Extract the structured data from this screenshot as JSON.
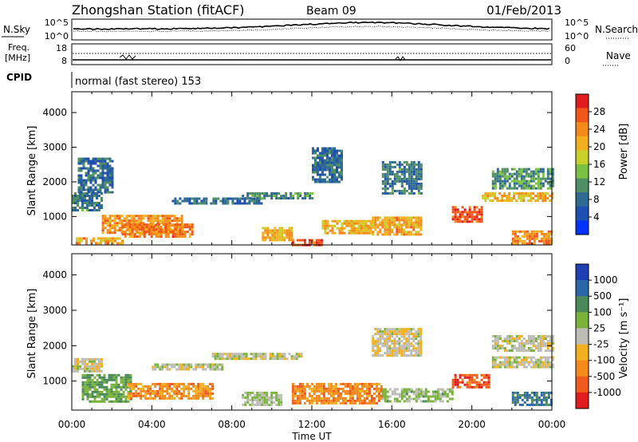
{
  "header": {
    "title": "Zhongshan Station (fitACF)",
    "beam": "Beam 09",
    "date": "01/Feb/2013"
  },
  "top_panels": {
    "nsky_label": "N.Sky",
    "nsearch_label": "N.Search",
    "freq_label_1": "Freq.",
    "freq_label_2": "[MHz]",
    "nave_label": "Nave",
    "cpid_label": "CPID",
    "nsky_ticks": [
      "10^5",
      "10^0"
    ],
    "nsearch_ticks": [
      "10^5",
      "10^0"
    ],
    "freq_ticks": [
      "18",
      "8"
    ],
    "nave_ticks": [
      "60",
      "0"
    ],
    "cpid_text": "normal (fast stereo) 153"
  },
  "colorbars": {
    "power": {
      "label": "Power [dB]",
      "ticks": [
        "4",
        "8",
        "12",
        "16",
        "20",
        "24",
        "28"
      ],
      "colors": [
        "#0033ff",
        "#1f4fb0",
        "#2f6a95",
        "#4e8f66",
        "#7ac142",
        "#c9d02a",
        "#f2b01e",
        "#f58a1a",
        "#f0561a",
        "#e01c1c"
      ]
    },
    "velocity": {
      "label": "Velocity [m s⁻¹]",
      "ticks": [
        "1000",
        "500",
        "100",
        "25",
        "-25",
        "-100",
        "-500",
        "-1000"
      ],
      "colors": [
        "#1f3fb5",
        "#2a66a8",
        "#4a8a5a",
        "#7ab33c",
        "#bdbdb5",
        "#f2b01e",
        "#f58a1a",
        "#f05a1a",
        "#e01c1c"
      ]
    }
  },
  "axes": {
    "y_label": "Slant Range [km]",
    "x_label": "Time UT",
    "x_ticks": [
      "00:00",
      "04:00",
      "08:00",
      "12:00",
      "16:00",
      "20:00",
      "00:00"
    ],
    "y_ticks": [
      "1000",
      "2000",
      "3000",
      "4000"
    ]
  },
  "chart_data": [
    {
      "type": "heatmap",
      "title": "Power [dB]",
      "xlabel": "Time UT",
      "ylabel": "Slant Range [km]",
      "xlim": [
        0,
        24
      ],
      "ylim": [
        180,
        4600
      ],
      "zlim": [
        0,
        32
      ],
      "regions": [
        {
          "t0": 0.0,
          "t1": 1.5,
          "r0": 1150,
          "r1": 1700,
          "value": 9
        },
        {
          "t0": 0.3,
          "t1": 2.0,
          "r0": 1700,
          "r1": 2700,
          "value": 8
        },
        {
          "t0": 1.5,
          "t1": 5.5,
          "r0": 500,
          "r1": 1050,
          "value": 23
        },
        {
          "t0": 2.5,
          "t1": 6.0,
          "r0": 450,
          "r1": 800,
          "value": 25
        },
        {
          "t0": 0.2,
          "t1": 2.5,
          "r0": 250,
          "r1": 400,
          "value": 22
        },
        {
          "t0": 5.0,
          "t1": 9.5,
          "r0": 1350,
          "r1": 1550,
          "value": 8
        },
        {
          "t0": 8.5,
          "t1": 12.0,
          "r0": 1500,
          "r1": 1700,
          "value": 10
        },
        {
          "t0": 9.5,
          "t1": 11.0,
          "r0": 350,
          "r1": 700,
          "value": 21
        },
        {
          "t0": 11.0,
          "t1": 12.5,
          "r0": 200,
          "r1": 350,
          "value": 27
        },
        {
          "t0": 12.0,
          "t1": 13.5,
          "r0": 2000,
          "r1": 3000,
          "value": 8
        },
        {
          "t0": 12.5,
          "t1": 15.0,
          "r0": 500,
          "r1": 900,
          "value": 21
        },
        {
          "t0": 15.0,
          "t1": 17.5,
          "r0": 500,
          "r1": 1000,
          "value": 22
        },
        {
          "t0": 15.5,
          "t1": 17.5,
          "r0": 1700,
          "r1": 2600,
          "value": 9
        },
        {
          "t0": 19.0,
          "t1": 20.5,
          "r0": 850,
          "r1": 1300,
          "value": 27
        },
        {
          "t0": 20.5,
          "t1": 24.0,
          "r0": 1450,
          "r1": 1700,
          "value": 20
        },
        {
          "t0": 21.0,
          "t1": 24.0,
          "r0": 1800,
          "r1": 2400,
          "value": 11
        },
        {
          "t0": 22.0,
          "t1": 24.0,
          "r0": 250,
          "r1": 600,
          "value": 24
        }
      ]
    },
    {
      "type": "heatmap",
      "title": "Velocity [m s⁻¹]",
      "xlabel": "Time UT",
      "ylabel": "Slant Range [km]",
      "xlim": [
        0,
        24
      ],
      "ylim": [
        180,
        4600
      ],
      "zlim": [
        -1000,
        1000
      ],
      "regions": [
        {
          "t0": 0.0,
          "t1": 1.5,
          "r0": 1300,
          "r1": 1650,
          "value": -20
        },
        {
          "t0": 0.5,
          "t1": 3.0,
          "r0": 400,
          "r1": 1200,
          "value": 350
        },
        {
          "t0": 2.8,
          "t1": 7.0,
          "r0": 500,
          "r1": 950,
          "value": -420
        },
        {
          "t0": 4.0,
          "t1": 7.5,
          "r0": 1300,
          "r1": 1500,
          "value": 20
        },
        {
          "t0": 7.0,
          "t1": 11.5,
          "r0": 1650,
          "r1": 1800,
          "value": 10
        },
        {
          "t0": 8.5,
          "t1": 10.5,
          "r0": 350,
          "r1": 700,
          "value": 120
        },
        {
          "t0": 11.0,
          "t1": 15.5,
          "r0": 350,
          "r1": 950,
          "value": -450
        },
        {
          "t0": 15.5,
          "t1": 19.0,
          "r0": 400,
          "r1": 800,
          "value": 150
        },
        {
          "t0": 15.0,
          "t1": 17.5,
          "r0": 1700,
          "r1": 2500,
          "value": -60
        },
        {
          "t0": 19.0,
          "t1": 20.8,
          "r0": 850,
          "r1": 1200,
          "value": -700
        },
        {
          "t0": 21.0,
          "t1": 24.0,
          "r0": 1400,
          "r1": 1700,
          "value": -5
        },
        {
          "t0": 21.0,
          "t1": 24.0,
          "r0": 1850,
          "r1": 2300,
          "value": 15
        },
        {
          "t0": 22.0,
          "t1": 24.0,
          "r0": 300,
          "r1": 700,
          "value": 600
        }
      ]
    }
  ]
}
